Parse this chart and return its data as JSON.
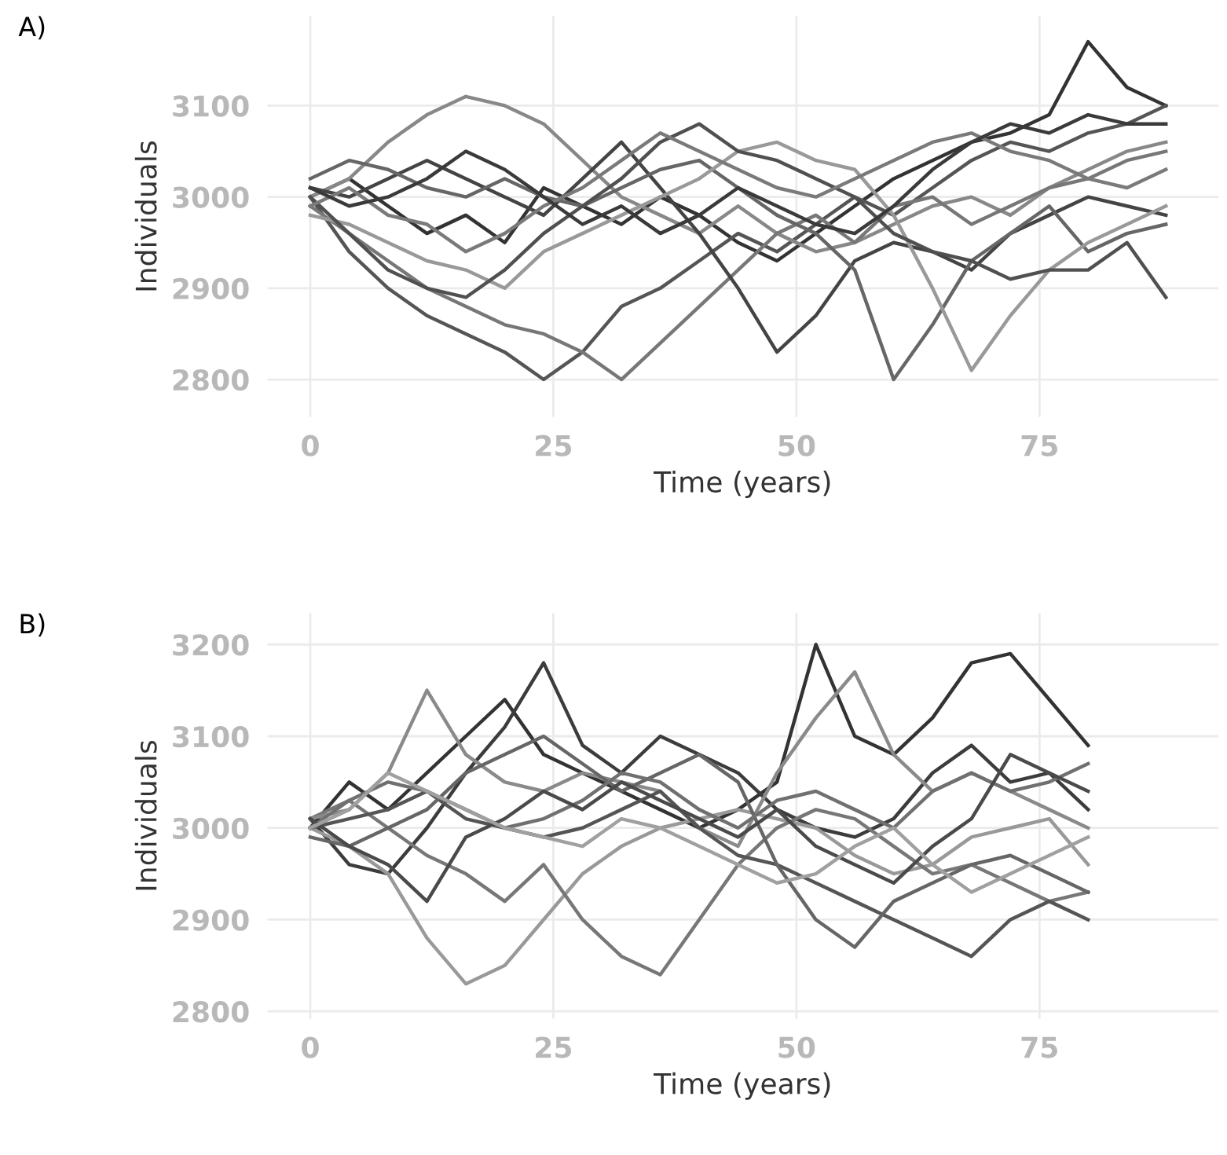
{
  "chart_data": [
    {
      "type": "line",
      "title": "A)",
      "xlabel": "Time (years)",
      "ylabel": "Individuals",
      "x": [
        0,
        4,
        8,
        12,
        16,
        20,
        24,
        28,
        32,
        36,
        40,
        44,
        48,
        52,
        56,
        60,
        64,
        68,
        72,
        76,
        80,
        84,
        88
      ],
      "xlim": [
        -4.4,
        93.4
      ],
      "ylim": [
        2759,
        3198
      ],
      "xticks": [
        0,
        25,
        50,
        75
      ],
      "yticks": [
        2800,
        2900,
        3000,
        3100
      ],
      "grid": true,
      "legend": false,
      "marker": "none",
      "line_style": "solid",
      "series": [
        {
          "color": "#333333",
          "values": [
            3000,
            3020,
            2990,
            2960,
            2980,
            2950,
            3010,
            2990,
            2970,
            3000,
            2980,
            2950,
            2930,
            2960,
            2990,
            3020,
            3040,
            3060,
            3070,
            3090,
            3170,
            3120,
            3100
          ]
        },
        {
          "color": "#555555",
          "values": [
            3000,
            2940,
            2900,
            2870,
            2850,
            2830,
            2800,
            2830,
            2880,
            2900,
            2930,
            2960,
            2940,
            2970,
            3000,
            2980,
            3010,
            3040,
            3060,
            3050,
            3070,
            3080,
            3100
          ]
        },
        {
          "color": "#888888",
          "values": [
            3000,
            3020,
            3060,
            3090,
            3110,
            3100,
            3080,
            3040,
            3000,
            2980,
            2960,
            2990,
            2960,
            2940,
            2950,
            2970,
            2990,
            3000,
            2980,
            3010,
            3030,
            3050,
            3060
          ]
        },
        {
          "color": "#777777",
          "values": [
            2990,
            2960,
            2930,
            2900,
            2880,
            2860,
            2850,
            2830,
            2800,
            2840,
            2880,
            2920,
            2960,
            2980,
            2950,
            2990,
            3000,
            2970,
            2990,
            3010,
            3020,
            3040,
            3050
          ]
        },
        {
          "color": "#444444",
          "values": [
            3010,
            3000,
            3020,
            3040,
            3020,
            3000,
            2980,
            3020,
            3060,
            3010,
            2960,
            2900,
            2830,
            2870,
            2930,
            2950,
            2940,
            2920,
            2960,
            2980,
            3000,
            2990,
            2980
          ]
        },
        {
          "color": "#666666",
          "values": [
            3020,
            3040,
            3030,
            3010,
            3000,
            3020,
            3000,
            2990,
            3010,
            3030,
            3040,
            3010,
            2980,
            2960,
            2920,
            2800,
            2860,
            2930,
            2960,
            2990,
            2940,
            2960,
            2970
          ]
        },
        {
          "color": "#999999",
          "values": [
            2980,
            2970,
            2950,
            2930,
            2920,
            2900,
            2940,
            2960,
            2980,
            3000,
            3020,
            3050,
            3060,
            3040,
            3030,
            2980,
            2900,
            2810,
            2870,
            2920,
            2950,
            2970,
            2990
          ]
        },
        {
          "color": "#505050",
          "values": [
            3000,
            2960,
            2920,
            2900,
            2890,
            2920,
            2960,
            2990,
            3020,
            3060,
            3080,
            3050,
            3040,
            3020,
            3000,
            2960,
            2940,
            2930,
            2910,
            2920,
            2920,
            2950,
            2890
          ]
        },
        {
          "color": "#7a7a7a",
          "values": [
            2990,
            3010,
            2980,
            2970,
            2940,
            2960,
            2990,
            3010,
            3040,
            3070,
            3050,
            3030,
            3010,
            3000,
            3020,
            3040,
            3060,
            3070,
            3050,
            3040,
            3020,
            3010,
            3030
          ]
        },
        {
          "color": "#3a3a3a",
          "values": [
            3010,
            2990,
            3000,
            3020,
            3050,
            3030,
            3000,
            2970,
            2990,
            2960,
            2980,
            3010,
            2990,
            2970,
            2960,
            2990,
            3030,
            3060,
            3080,
            3070,
            3090,
            3080,
            3080
          ]
        }
      ]
    },
    {
      "type": "line",
      "title": "B)",
      "xlabel": "Time (years)",
      "ylabel": "Individuals",
      "x": [
        0,
        4,
        8,
        12,
        16,
        20,
        24,
        28,
        32,
        36,
        40,
        44,
        48,
        52,
        56,
        60,
        64,
        68,
        72,
        76,
        80
      ],
      "xlim": [
        -4.4,
        93.4
      ],
      "ylim": [
        2792,
        3234
      ],
      "xticks": [
        0,
        25,
        50,
        75
      ],
      "yticks": [
        2800,
        2900,
        3000,
        3100,
        3200
      ],
      "grid": true,
      "legend": false,
      "marker": "none",
      "line_style": "solid",
      "series": [
        {
          "color": "#333333",
          "values": [
            3000,
            3050,
            3020,
            3060,
            3100,
            3140,
            3080,
            3060,
            3040,
            3020,
            3000,
            3020,
            3050,
            3200,
            3100,
            3080,
            3120,
            3180,
            3190,
            3140,
            3090
          ]
        },
        {
          "color": "#3c3c3c",
          "values": [
            3010,
            2960,
            2950,
            3000,
            3060,
            3110,
            3180,
            3090,
            3060,
            3100,
            3080,
            3060,
            3020,
            3000,
            2990,
            3010,
            3060,
            3090,
            3050,
            3060,
            3020
          ]
        },
        {
          "color": "#999999",
          "values": [
            3000,
            2980,
            2950,
            2880,
            2830,
            2850,
            2900,
            2950,
            2980,
            3000,
            3010,
            3020,
            3010,
            3000,
            2970,
            2950,
            2960,
            2990,
            3000,
            3010,
            2960
          ]
        },
        {
          "color": "#777777",
          "values": [
            3010,
            3030,
            3000,
            2970,
            2950,
            2920,
            2960,
            2900,
            2860,
            2840,
            2900,
            2960,
            3000,
            3020,
            3010,
            2980,
            2950,
            2960,
            2940,
            2920,
            2930
          ]
        },
        {
          "color": "#8a8a8a",
          "values": [
            3010,
            3020,
            3060,
            3150,
            3080,
            3050,
            3040,
            3060,
            3050,
            3040,
            3000,
            2980,
            3060,
            3120,
            3170,
            3080,
            3040,
            3060,
            3040,
            3020,
            3000
          ]
        },
        {
          "color": "#555555",
          "values": [
            3000,
            3010,
            3020,
            3040,
            3010,
            3000,
            2990,
            3000,
            3020,
            3040,
            3000,
            2970,
            2960,
            2940,
            2920,
            2900,
            2880,
            2860,
            2900,
            2920,
            2900
          ]
        },
        {
          "color": "#666666",
          "values": [
            2990,
            2980,
            3000,
            3020,
            3060,
            3080,
            3100,
            3070,
            3040,
            3060,
            3080,
            3050,
            2960,
            2900,
            2870,
            2920,
            2940,
            2960,
            2970,
            2950,
            2930
          ]
        },
        {
          "color": "#707070",
          "values": [
            3000,
            3030,
            3050,
            3040,
            3020,
            3000,
            3010,
            3030,
            3060,
            3050,
            3020,
            3000,
            3030,
            3040,
            3020,
            3000,
            3040,
            3060,
            3040,
            3050,
            3070
          ]
        },
        {
          "color": "#4a4a4a",
          "values": [
            3010,
            2980,
            2960,
            2920,
            2990,
            3010,
            3040,
            3020,
            3050,
            3030,
            3010,
            2990,
            3020,
            2980,
            2960,
            2940,
            2980,
            3010,
            3080,
            3060,
            3040
          ]
        },
        {
          "color": "#a0a0a0",
          "values": [
            3000,
            3020,
            3060,
            3040,
            3020,
            3000,
            2990,
            2980,
            3010,
            3000,
            2980,
            2960,
            2940,
            2950,
            2980,
            3000,
            2960,
            2930,
            2950,
            2970,
            2990
          ]
        }
      ]
    }
  ]
}
